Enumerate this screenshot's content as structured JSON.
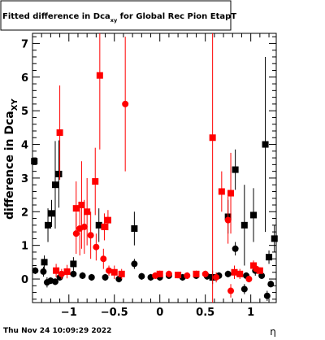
{
  "title_main": "Fitted difference in Dca",
  "title_sub": "xy",
  "title_rest": " for Global Rec Pion EtapT",
  "timestamp": "Thu Nov 24 10:09:29 2022",
  "chart_data": {
    "type": "scatter",
    "xlim": [
      -1.4,
      1.28
    ],
    "ylim": [
      -0.7,
      7.3
    ],
    "xlabel": "η",
    "ylabel_main": "difference in Dca",
    "ylabel_sub": "XY",
    "x_ticks": [
      -1,
      -0.5,
      0,
      0.5,
      1
    ],
    "x_tick_labels": [
      "−1",
      "−0.5",
      "0",
      "0.5",
      "1"
    ],
    "y_ticks": [
      0,
      1,
      2,
      3,
      4,
      5,
      6,
      7
    ],
    "y_tick_labels": [
      "0",
      "1",
      "2",
      "3",
      "4",
      "5",
      "6",
      "7"
    ],
    "grid": false,
    "series": [
      {
        "marker": "square",
        "color": "#000000",
        "points": [
          {
            "x": -1.38,
            "y": 3.5,
            "err": 0.0
          },
          {
            "x": -1.27,
            "y": 0.5,
            "err": 0.2
          },
          {
            "x": -1.23,
            "y": 1.6,
            "err": 0.5
          },
          {
            "x": -1.19,
            "y": 1.95,
            "err": 0.4
          },
          {
            "x": -1.15,
            "y": 2.8,
            "err": 1.3
          },
          {
            "x": -1.11,
            "y": 3.12,
            "err": 1.0
          },
          {
            "x": -0.95,
            "y": 0.45,
            "err": 0.2
          },
          {
            "x": -0.67,
            "y": 1.6,
            "err": 0.5
          },
          {
            "x": -0.28,
            "y": 1.5,
            "err": 0.5
          },
          {
            "x": 0.58,
            "y": 0.05,
            "err": 0.2
          },
          {
            "x": 0.75,
            "y": 1.85,
            "err": 0.5
          },
          {
            "x": 0.83,
            "y": 3.25,
            "err": 0.6
          },
          {
            "x": 0.93,
            "y": 1.6,
            "err": 1.2
          },
          {
            "x": 1.03,
            "y": 1.9,
            "err": 0.8
          },
          {
            "x": 1.16,
            "y": 4.0,
            "err": 2.6
          },
          {
            "x": 1.2,
            "y": 0.65,
            "err": 0.2
          },
          {
            "x": 1.26,
            "y": 1.2,
            "err": 0.4
          }
        ]
      },
      {
        "marker": "circle",
        "color": "#000000",
        "points": [
          {
            "x": -1.37,
            "y": 0.25,
            "err": 0.1
          },
          {
            "x": -1.28,
            "y": 0.22,
            "err": 0.15
          },
          {
            "x": -1.24,
            "y": -0.1,
            "err": 0.15
          },
          {
            "x": -1.2,
            "y": -0.05,
            "err": 0.1
          },
          {
            "x": -1.15,
            "y": -0.08,
            "err": 0.1
          },
          {
            "x": -1.1,
            "y": 0.05,
            "err": 0.1
          },
          {
            "x": -0.95,
            "y": 0.15,
            "err": 0.1
          },
          {
            "x": -0.85,
            "y": 0.1,
            "err": 0.1
          },
          {
            "x": -0.75,
            "y": 0.05,
            "err": 0.1
          },
          {
            "x": -0.6,
            "y": 0.05,
            "err": 0.1
          },
          {
            "x": -0.45,
            "y": 0.0,
            "err": 0.1
          },
          {
            "x": -0.28,
            "y": 0.45,
            "err": 0.15
          },
          {
            "x": -0.2,
            "y": 0.08,
            "err": 0.1
          },
          {
            "x": -0.1,
            "y": 0.05,
            "err": 0.1
          },
          {
            "x": 0.0,
            "y": 0.05,
            "err": 0.1
          },
          {
            "x": 0.1,
            "y": 0.1,
            "err": 0.1
          },
          {
            "x": 0.25,
            "y": 0.05,
            "err": 0.1
          },
          {
            "x": 0.4,
            "y": 0.1,
            "err": 0.1
          },
          {
            "x": 0.52,
            "y": 0.08,
            "err": 0.1
          },
          {
            "x": 0.65,
            "y": 0.1,
            "err": 0.1
          },
          {
            "x": 0.75,
            "y": 0.15,
            "err": 0.1
          },
          {
            "x": 0.83,
            "y": 0.9,
            "err": 0.2
          },
          {
            "x": 0.93,
            "y": -0.3,
            "err": 0.15
          },
          {
            "x": 0.95,
            "y": 0.1,
            "err": 0.1
          },
          {
            "x": 1.05,
            "y": 0.25,
            "err": 0.15
          },
          {
            "x": 1.12,
            "y": 0.1,
            "err": 0.1
          },
          {
            "x": 1.18,
            "y": -0.5,
            "err": 0.15
          },
          {
            "x": 1.22,
            "y": -0.15,
            "err": 0.1
          }
        ]
      },
      {
        "marker": "square",
        "color": "#ff0000",
        "points": [
          {
            "x": -1.14,
            "y": 0.25,
            "err": 0.2
          },
          {
            "x": -1.1,
            "y": 4.35,
            "err": 1.4
          },
          {
            "x": -1.02,
            "y": 0.22,
            "err": 0.2
          },
          {
            "x": -0.92,
            "y": 2.1,
            "err": 0.8
          },
          {
            "x": -0.86,
            "y": 2.2,
            "err": 1.3
          },
          {
            "x": -0.8,
            "y": 2.0,
            "err": 1.0
          },
          {
            "x": -0.71,
            "y": 2.9,
            "err": 1.0
          },
          {
            "x": -0.66,
            "y": 6.05,
            "err": 2.2
          },
          {
            "x": -0.61,
            "y": 1.55,
            "err": 0.4
          },
          {
            "x": -0.57,
            "y": 1.75,
            "err": 0.3
          },
          {
            "x": -0.5,
            "y": 0.2,
            "err": 0.2
          },
          {
            "x": -0.42,
            "y": 0.15,
            "err": 0.15
          },
          {
            "x": 0.0,
            "y": 0.15,
            "err": 0.1
          },
          {
            "x": 0.2,
            "y": 0.12,
            "err": 0.1
          },
          {
            "x": 0.4,
            "y": 0.15,
            "err": 0.1
          },
          {
            "x": 0.58,
            "y": 4.2,
            "err": 6.5
          },
          {
            "x": 0.68,
            "y": 2.6,
            "err": 0.6
          },
          {
            "x": 0.78,
            "y": 2.55,
            "err": 1.2
          },
          {
            "x": 0.82,
            "y": 0.2,
            "err": 0.2
          },
          {
            "x": 0.88,
            "y": 0.15,
            "err": 0.15
          },
          {
            "x": 1.03,
            "y": 0.4,
            "err": 0.15
          },
          {
            "x": 1.1,
            "y": 0.25,
            "err": 0.1
          }
        ]
      },
      {
        "marker": "circle",
        "color": "#ff0000",
        "points": [
          {
            "x": -1.08,
            "y": 0.15,
            "err": 0.15
          },
          {
            "x": -0.92,
            "y": 1.35,
            "err": 0.6
          },
          {
            "x": -0.88,
            "y": 1.5,
            "err": 0.8
          },
          {
            "x": -0.83,
            "y": 1.55,
            "err": 0.8
          },
          {
            "x": -0.76,
            "y": 1.3,
            "err": 0.7
          },
          {
            "x": -0.7,
            "y": 0.95,
            "err": 0.4
          },
          {
            "x": -0.62,
            "y": 0.6,
            "err": 0.3
          },
          {
            "x": -0.56,
            "y": 0.25,
            "err": 0.15
          },
          {
            "x": -0.38,
            "y": 5.2,
            "err": 2.0
          },
          {
            "x": -0.05,
            "y": 0.1,
            "err": 0.1
          },
          {
            "x": 0.1,
            "y": 0.15,
            "err": 0.1
          },
          {
            "x": 0.3,
            "y": 0.1,
            "err": 0.1
          },
          {
            "x": 0.5,
            "y": 0.15,
            "err": 0.1
          },
          {
            "x": 0.62,
            "y": 0.05,
            "err": 0.15
          },
          {
            "x": 0.75,
            "y": 1.75,
            "err": 0.7
          },
          {
            "x": 0.78,
            "y": -0.35,
            "err": 0.2
          },
          {
            "x": 0.98,
            "y": 0.0,
            "err": 0.1
          },
          {
            "x": 1.06,
            "y": 0.3,
            "err": 0.1
          }
        ]
      }
    ]
  }
}
